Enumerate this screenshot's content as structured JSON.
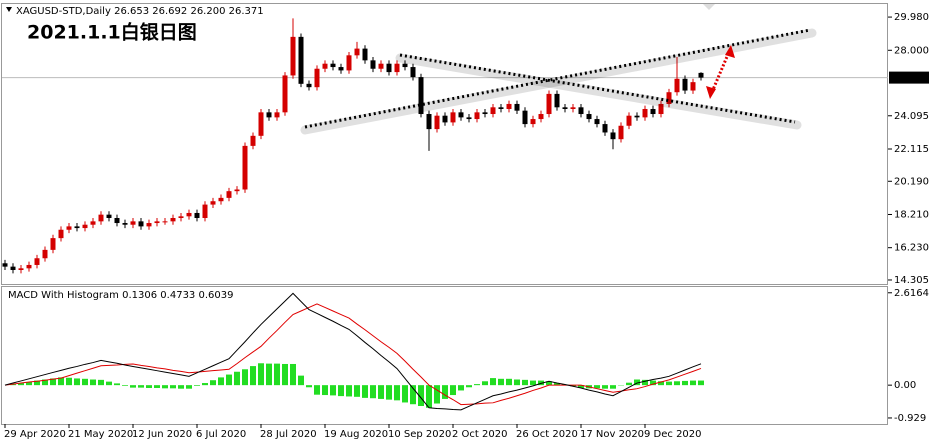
{
  "chart_data": [
    {
      "type": "candlestick",
      "title": "XAGUSD-STD,Daily",
      "header_labels": [
        "26.653",
        "26.692",
        "26.200",
        "26.371"
      ],
      "annotation": "2021.1.1白银日图",
      "categories": [
        "29 Apr 2020",
        null,
        null,
        null,
        null,
        null,
        null,
        null,
        "21 May 2020",
        null,
        null,
        null,
        null,
        null,
        null,
        null,
        "12 Jun 2020",
        null,
        null,
        null,
        null,
        null,
        null,
        null,
        "6 Jul 2020",
        null,
        null,
        null,
        null,
        null,
        null,
        null,
        "28 Jul 2020",
        null,
        null,
        null,
        null,
        null,
        null,
        null,
        "19 Aug 2020",
        null,
        null,
        null,
        null,
        null,
        null,
        null,
        "10 Sep 2020",
        null,
        null,
        null,
        null,
        null,
        null,
        null,
        "2 Oct 2020",
        null,
        null,
        null,
        null,
        null,
        null,
        null,
        "26 Oct 2020",
        null,
        null,
        null,
        null,
        null,
        null,
        null,
        "17 Nov 2020",
        null,
        null,
        null,
        null,
        null,
        null,
        null,
        "9 Dec 2020",
        null,
        null,
        null,
        null,
        null,
        null,
        null
      ],
      "open": [
        15.3,
        15.1,
        14.9,
        15.0,
        15.2,
        15.6,
        16.1,
        16.8,
        17.3,
        17.5,
        17.4,
        17.6,
        17.8,
        18.2,
        18.0,
        17.7,
        17.6,
        17.8,
        17.5,
        17.7,
        17.8,
        17.8,
        18.0,
        18.1,
        18.3,
        18.0,
        18.8,
        19.0,
        19.2,
        19.6,
        19.7,
        22.3,
        22.9,
        24.3,
        24.0,
        24.3,
        26.5,
        28.8,
        26.0,
        25.8,
        26.9,
        27.2,
        27.0,
        26.8,
        27.7,
        28.1,
        27.4,
        26.9,
        27.2,
        26.7,
        27.2,
        27.0,
        26.4,
        24.2,
        23.3,
        24.1,
        23.7,
        24.3,
        24.0,
        23.9,
        24.3,
        24.2,
        24.6,
        24.5,
        24.8,
        24.4,
        23.6,
        23.9,
        24.2,
        25.4,
        24.6,
        24.5,
        24.6,
        24.2,
        23.9,
        23.6,
        23.1,
        22.7,
        23.5,
        24.1,
        24.0,
        24.5,
        24.2,
        24.8,
        25.5,
        26.3,
        25.6,
        26.653
      ],
      "high": [
        15.5,
        15.3,
        15.2,
        15.4,
        15.8,
        16.3,
        17.0,
        17.5,
        17.7,
        17.7,
        17.8,
        18.0,
        18.4,
        18.4,
        18.2,
        17.9,
        18.0,
        18.0,
        17.9,
        18.0,
        18.0,
        18.2,
        18.3,
        18.5,
        18.5,
        19.0,
        19.2,
        19.4,
        19.8,
        19.9,
        22.5,
        23.1,
        24.5,
        24.5,
        24.5,
        26.7,
        29.9,
        29.0,
        26.2,
        27.1,
        27.4,
        27.4,
        27.2,
        27.9,
        28.5,
        28.3,
        27.6,
        27.4,
        27.4,
        27.4,
        27.4,
        27.2,
        26.6,
        24.4,
        24.3,
        24.3,
        24.5,
        24.5,
        24.2,
        24.5,
        24.5,
        24.8,
        24.8,
        25.0,
        25.0,
        24.6,
        24.1,
        24.4,
        25.6,
        25.6,
        24.8,
        24.8,
        24.8,
        24.4,
        24.1,
        23.8,
        23.3,
        23.7,
        24.3,
        24.3,
        24.7,
        24.7,
        25.0,
        25.7,
        27.6,
        26.5,
        26.3,
        26.692
      ],
      "low": [
        14.9,
        14.7,
        14.7,
        14.8,
        15.0,
        15.4,
        15.9,
        16.6,
        17.1,
        17.2,
        17.2,
        17.4,
        17.6,
        17.8,
        17.5,
        17.4,
        17.4,
        17.3,
        17.3,
        17.5,
        17.6,
        17.6,
        17.8,
        17.9,
        17.8,
        17.8,
        18.6,
        18.8,
        19.0,
        19.4,
        19.5,
        22.1,
        22.7,
        23.8,
        23.8,
        24.1,
        26.3,
        25.8,
        25.6,
        25.6,
        26.7,
        26.8,
        26.6,
        26.6,
        27.5,
        27.2,
        26.7,
        26.7,
        26.5,
        26.5,
        26.8,
        26.2,
        24.0,
        22.0,
        23.1,
        23.5,
        23.5,
        23.8,
        23.7,
        23.7,
        24.0,
        24.0,
        24.3,
        24.3,
        24.2,
        23.4,
        23.4,
        23.7,
        24.0,
        24.4,
        24.3,
        24.3,
        24.0,
        23.7,
        23.4,
        22.9,
        22.1,
        22.5,
        23.3,
        23.8,
        23.8,
        24.0,
        24.0,
        24.6,
        25.3,
        25.4,
        25.4,
        26.2
      ],
      "close": [
        15.1,
        14.9,
        15.0,
        15.2,
        15.6,
        16.1,
        16.8,
        17.3,
        17.5,
        17.4,
        17.6,
        17.8,
        18.2,
        18.0,
        17.7,
        17.6,
        17.8,
        17.5,
        17.7,
        17.8,
        17.8,
        18.0,
        18.1,
        18.3,
        18.0,
        18.8,
        19.0,
        19.2,
        19.6,
        19.7,
        22.3,
        22.9,
        24.3,
        24.0,
        24.3,
        26.5,
        28.8,
        26.0,
        25.8,
        26.9,
        27.2,
        27.0,
        26.8,
        27.7,
        28.1,
        27.4,
        26.9,
        27.2,
        26.7,
        27.2,
        27.0,
        26.4,
        24.2,
        23.3,
        24.1,
        23.7,
        24.3,
        24.0,
        23.9,
        24.3,
        24.2,
        24.6,
        24.5,
        24.8,
        24.4,
        23.6,
        23.9,
        24.2,
        25.4,
        24.6,
        24.5,
        24.6,
        24.2,
        23.9,
        23.6,
        23.1,
        22.7,
        23.5,
        24.1,
        24.0,
        24.5,
        24.2,
        24.8,
        25.5,
        26.3,
        25.6,
        26.1,
        26.371
      ],
      "up_color": "#d40000",
      "down_color": "#000000",
      "ylim": [
        14.065,
        30.7
      ],
      "yticks": [
        {
          "value": 29.98,
          "label": "29.980"
        },
        {
          "value": 28,
          "label": "28.000"
        },
        24.095,
        22.115,
        {
          "value": 20.19,
          "label": "20.190"
        },
        {
          "value": 18.21,
          "label": "18.210"
        },
        {
          "value": 16.23,
          "label": "16.230"
        },
        14.305
      ]
    },
    {
      "type": "macd",
      "title": "MACD With Histogram",
      "histogram": [
        0,
        0.03,
        0.06,
        0.09,
        0.13,
        0.16,
        0.19,
        0.22,
        0.21,
        0.19,
        0.18,
        0.16,
        0.15,
        0.1,
        0.05,
        -0.02,
        -0.07,
        -0.07,
        -0.08,
        -0.08,
        -0.09,
        -0.09,
        -0.1,
        -0.1,
        -0.02,
        0.06,
        0.14,
        0.22,
        0.3,
        0.38,
        0.45,
        0.54,
        0.62,
        0.61,
        0.61,
        0.6,
        0.6,
        0.27,
        -0.06,
        -0.27,
        -0.28,
        -0.29,
        -0.31,
        -0.32,
        -0.33,
        -0.36,
        -0.37,
        -0.39,
        -0.41,
        -0.43,
        -0.49,
        -0.54,
        -0.59,
        -0.64,
        -0.52,
        -0.39,
        -0.28,
        -0.15,
        -0.06,
        0.03,
        0.11,
        0.2,
        0.18,
        0.18,
        0.16,
        0.15,
        0.13,
        0.13,
        0.11,
        0.06,
        0.02,
        -0.03,
        -0.08,
        -0.09,
        -0.09,
        -0.1,
        -0.1,
        -0.01,
        0.07,
        0.16,
        0.15,
        0.13,
        0.11,
        0.1,
        0.11,
        0.12,
        0.13,
        0.1306
      ],
      "signal": [
        0,
        0.03,
        0.06,
        0.09,
        0.11,
        0.14,
        0.17,
        0.2,
        0.27,
        0.34,
        0.41,
        0.48,
        0.55,
        0.56,
        0.57,
        0.59,
        0.6,
        0.56,
        0.53,
        0.49,
        0.46,
        0.42,
        0.39,
        0.35,
        0.37,
        0.39,
        0.41,
        0.43,
        0.45,
        0.61,
        0.78,
        0.94,
        1.1,
        1.33,
        1.55,
        1.78,
        2.0,
        2.1,
        2.2,
        2.3,
        2.2,
        2.1,
        2.0,
        1.9,
        1.73,
        1.57,
        1.4,
        1.23,
        1.07,
        0.9,
        0.68,
        0.45,
        0.23,
        0.0,
        -0.14,
        -0.28,
        -0.41,
        -0.55,
        -0.54,
        -0.53,
        -0.51,
        -0.5,
        -0.43,
        -0.37,
        -0.3,
        -0.23,
        -0.15,
        -0.08,
        0.0,
        0,
        0,
        0,
        0,
        -0.05,
        -0.1,
        -0.15,
        -0.2,
        -0.17,
        -0.13,
        -0.1,
        -0.04,
        0.03,
        0.09,
        0.15,
        0.23,
        0.31,
        0.39,
        0.4733
      ],
      "macd": [
        0,
        0.06,
        0.12,
        0.18,
        0.24,
        0.3,
        0.36,
        0.42,
        0.48,
        0.53,
        0.59,
        0.64,
        0.7,
        0.66,
        0.62,
        0.57,
        0.53,
        0.49,
        0.45,
        0.41,
        0.37,
        0.33,
        0.29,
        0.25,
        0.35,
        0.45,
        0.55,
        0.65,
        0.75,
        0.99,
        1.23,
        1.48,
        1.72,
        1.94,
        2.16,
        2.38,
        2.6,
        2.37,
        2.14,
        2.03,
        1.92,
        1.81,
        1.69,
        1.58,
        1.4,
        1.21,
        1.03,
        0.84,
        0.66,
        0.47,
        0.19,
        -0.09,
        -0.36,
        -0.64,
        -0.66,
        -0.67,
        -0.69,
        -0.7,
        -0.6,
        -0.5,
        -0.4,
        -0.3,
        -0.25,
        -0.19,
        -0.14,
        -0.08,
        -0.02,
        0.05,
        0.11,
        0.06,
        0.02,
        -0.03,
        -0.08,
        -0.14,
        -0.19,
        -0.25,
        -0.3,
        -0.18,
        -0.06,
        0.06,
        0.11,
        0.16,
        0.2,
        0.25,
        0.34,
        0.43,
        0.52,
        0.6039
      ],
      "histogram_color": "#22dd22",
      "signal_color": "#e00000",
      "macd_color": "#000000",
      "ylim": [
        -1.1,
        2.78
      ],
      "yticks": [
        2.6164,
        {
          "value": 0,
          "label": "0.00"
        },
        -0.929
      ]
    }
  ]
}
